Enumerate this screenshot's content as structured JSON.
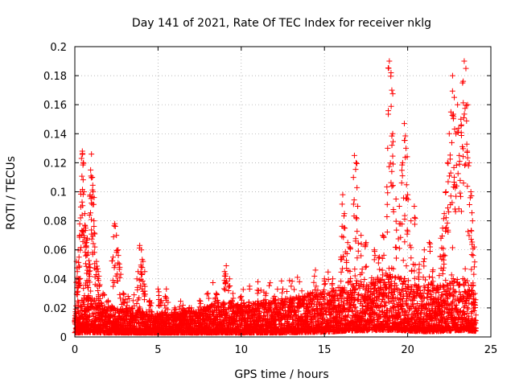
{
  "chart_data": {
    "type": "scatter",
    "title": "Day 141 of 2021, Rate Of TEC Index for receiver nklg",
    "xlabel": "GPS time / hours",
    "ylabel": "ROTI / TECUs",
    "xlim": [
      0,
      25
    ],
    "ylim": [
      0,
      0.2
    ],
    "xticks": [
      "0",
      "5",
      "10",
      "15",
      "20",
      "25"
    ],
    "yticks": [
      "0",
      "0.02",
      "0.04",
      "0.06",
      "0.08",
      "0.1",
      "0.12",
      "0.14",
      "0.16",
      "0.18",
      "0.2"
    ],
    "grid": true,
    "marker": "+",
    "color": "#ff0000",
    "points": [
      [
        0.1,
        0.052
      ],
      [
        0.15,
        0.045
      ],
      [
        0.2,
        0.06
      ],
      [
        0.25,
        0.055
      ],
      [
        0.3,
        0.07
      ],
      [
        0.35,
        0.1
      ],
      [
        0.4,
        0.123
      ],
      [
        0.45,
        0.128
      ],
      [
        0.5,
        0.12
      ],
      [
        0.55,
        0.1
      ],
      [
        0.6,
        0.085
      ],
      [
        0.65,
        0.075
      ],
      [
        0.7,
        0.065
      ],
      [
        0.75,
        0.068
      ],
      [
        0.8,
        0.058
      ],
      [
        0.85,
        0.045
      ],
      [
        0.9,
        0.05
      ],
      [
        0.95,
        0.115
      ],
      [
        1.0,
        0.126
      ],
      [
        1.05,
        0.11
      ],
      [
        1.1,
        0.1
      ],
      [
        1.15,
        0.08
      ],
      [
        1.2,
        0.062
      ],
      [
        1.3,
        0.052
      ],
      [
        1.4,
        0.045
      ],
      [
        1.5,
        0.036
      ],
      [
        1.7,
        0.03
      ],
      [
        2.0,
        0.025
      ],
      [
        2.3,
        0.055
      ],
      [
        2.4,
        0.078
      ],
      [
        2.5,
        0.07
      ],
      [
        2.6,
        0.06
      ],
      [
        2.7,
        0.048
      ],
      [
        2.9,
        0.03
      ],
      [
        3.2,
        0.028
      ],
      [
        3.5,
        0.025
      ],
      [
        3.8,
        0.045
      ],
      [
        3.9,
        0.063
      ],
      [
        4.0,
        0.06
      ],
      [
        4.1,
        0.052
      ],
      [
        4.2,
        0.045
      ],
      [
        4.5,
        0.025
      ],
      [
        5.0,
        0.033
      ],
      [
        5.2,
        0.025
      ],
      [
        5.5,
        0.033
      ],
      [
        6.0,
        0.02
      ],
      [
        6.5,
        0.018
      ],
      [
        7.0,
        0.02
      ],
      [
        7.5,
        0.025
      ],
      [
        8.0,
        0.03
      ],
      [
        8.5,
        0.03
      ],
      [
        9.0,
        0.045
      ],
      [
        9.1,
        0.049
      ],
      [
        9.3,
        0.04
      ],
      [
        9.5,
        0.03
      ],
      [
        10.0,
        0.028
      ],
      [
        10.5,
        0.035
      ],
      [
        11.0,
        0.038
      ],
      [
        11.5,
        0.03
      ],
      [
        12.0,
        0.028
      ],
      [
        12.5,
        0.033
      ],
      [
        13.0,
        0.035
      ],
      [
        13.5,
        0.038
      ],
      [
        14.0,
        0.03
      ],
      [
        14.5,
        0.035
      ],
      [
        15.0,
        0.04
      ],
      [
        15.5,
        0.04
      ],
      [
        16.0,
        0.055
      ],
      [
        16.1,
        0.098
      ],
      [
        16.2,
        0.085
      ],
      [
        16.4,
        0.065
      ],
      [
        16.5,
        0.062
      ],
      [
        16.8,
        0.125
      ],
      [
        16.9,
        0.12
      ],
      [
        17.0,
        0.09
      ],
      [
        17.2,
        0.07
      ],
      [
        17.5,
        0.065
      ],
      [
        18.0,
        0.06
      ],
      [
        18.3,
        0.055
      ],
      [
        18.5,
        0.07
      ],
      [
        18.8,
        0.13
      ],
      [
        18.9,
        0.19
      ],
      [
        19.0,
        0.182
      ],
      [
        19.05,
        0.17
      ],
      [
        19.1,
        0.14
      ],
      [
        19.3,
        0.095
      ],
      [
        19.5,
        0.09
      ],
      [
        19.7,
        0.12
      ],
      [
        19.8,
        0.147
      ],
      [
        19.9,
        0.13
      ],
      [
        20.0,
        0.098
      ],
      [
        20.2,
        0.08
      ],
      [
        20.4,
        0.09
      ],
      [
        20.7,
        0.05
      ],
      [
        21.0,
        0.06
      ],
      [
        21.3,
        0.065
      ],
      [
        21.5,
        0.045
      ],
      [
        21.8,
        0.035
      ],
      [
        22.0,
        0.068
      ],
      [
        22.1,
        0.075
      ],
      [
        22.2,
        0.085
      ],
      [
        22.3,
        0.1
      ],
      [
        22.4,
        0.12
      ],
      [
        22.5,
        0.14
      ],
      [
        22.6,
        0.155
      ],
      [
        22.7,
        0.18
      ],
      [
        22.8,
        0.165
      ],
      [
        22.9,
        0.14
      ],
      [
        23.0,
        0.16
      ],
      [
        23.1,
        0.125
      ],
      [
        23.2,
        0.15
      ],
      [
        23.3,
        0.175
      ],
      [
        23.4,
        0.19
      ],
      [
        23.5,
        0.185
      ],
      [
        23.6,
        0.16
      ],
      [
        23.7,
        0.12
      ],
      [
        23.8,
        0.1
      ],
      [
        23.9,
        0.08
      ],
      [
        24.0,
        0.062
      ]
    ],
    "baseline": [
      [
        0.0,
        0.012
      ],
      [
        0.5,
        0.015
      ],
      [
        1.0,
        0.016
      ],
      [
        1.5,
        0.014
      ],
      [
        2.0,
        0.012
      ],
      [
        2.5,
        0.012
      ],
      [
        3.0,
        0.011
      ],
      [
        3.5,
        0.011
      ],
      [
        4.0,
        0.01
      ],
      [
        4.5,
        0.01
      ],
      [
        5.0,
        0.009
      ],
      [
        5.5,
        0.009
      ],
      [
        6.0,
        0.009
      ],
      [
        6.5,
        0.01
      ],
      [
        7.0,
        0.01
      ],
      [
        7.5,
        0.011
      ],
      [
        8.0,
        0.012
      ],
      [
        8.5,
        0.013
      ],
      [
        9.0,
        0.014
      ],
      [
        9.5,
        0.013
      ],
      [
        10.0,
        0.012
      ],
      [
        10.5,
        0.013
      ],
      [
        11.0,
        0.014
      ],
      [
        11.5,
        0.014
      ],
      [
        12.0,
        0.014
      ],
      [
        12.5,
        0.015
      ],
      [
        13.0,
        0.015
      ],
      [
        13.5,
        0.016
      ],
      [
        14.0,
        0.016
      ],
      [
        14.5,
        0.017
      ],
      [
        15.0,
        0.017
      ],
      [
        15.5,
        0.018
      ],
      [
        16.0,
        0.02
      ],
      [
        16.5,
        0.021
      ],
      [
        17.0,
        0.022
      ],
      [
        17.5,
        0.022
      ],
      [
        18.0,
        0.023
      ],
      [
        18.5,
        0.024
      ],
      [
        19.0,
        0.024
      ],
      [
        19.5,
        0.023
      ],
      [
        20.0,
        0.022
      ],
      [
        20.5,
        0.02
      ],
      [
        21.0,
        0.019
      ],
      [
        21.5,
        0.019
      ],
      [
        22.0,
        0.02
      ],
      [
        22.5,
        0.021
      ],
      [
        23.0,
        0.023
      ],
      [
        23.5,
        0.022
      ],
      [
        24.0,
        0.02
      ]
    ]
  }
}
